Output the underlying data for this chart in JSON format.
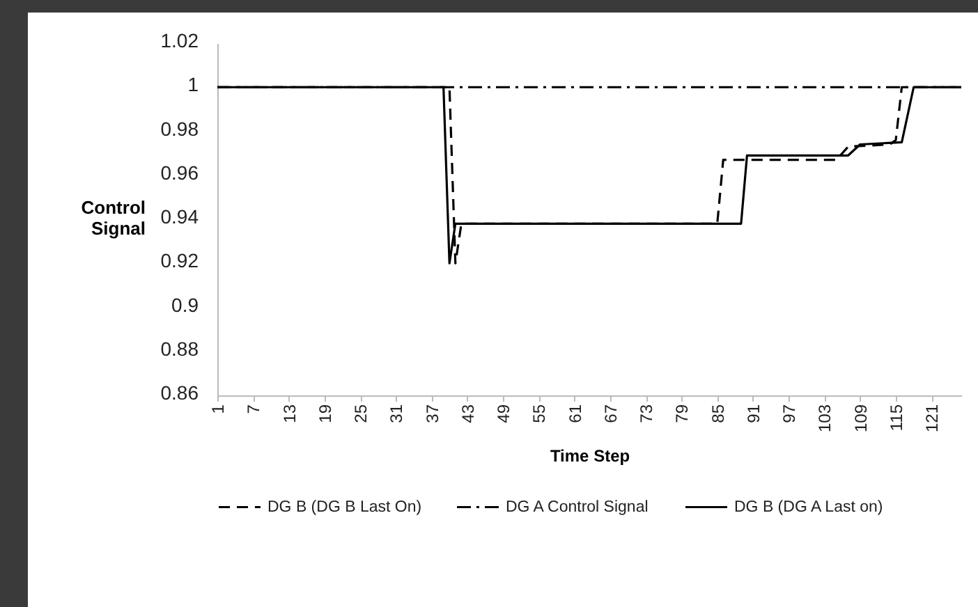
{
  "chart_data": {
    "type": "line",
    "xlabel": "Time Step",
    "ylabel": "Control Signal",
    "xlim": [
      1,
      126
    ],
    "xticks": [
      1,
      7,
      13,
      19,
      25,
      31,
      37,
      43,
      49,
      55,
      61,
      67,
      73,
      79,
      85,
      91,
      97,
      103,
      109,
      115,
      121
    ],
    "ylim": [
      0.86,
      1.02
    ],
    "yticks": [
      0.86,
      0.88,
      0.9,
      0.92,
      0.94,
      0.96,
      0.98,
      1,
      1.02
    ],
    "grid": false,
    "legend": "bottom",
    "marker": "none",
    "series": [
      {
        "name": "DG B (DG B Last On)",
        "color": "#000000",
        "line_style": "dashed",
        "x": [
          1,
          40,
          41,
          42,
          85,
          86,
          105,
          107,
          114,
          115,
          116,
          126
        ],
        "values": [
          1,
          1,
          0.92,
          0.938,
          0.938,
          0.967,
          0.967,
          0.973,
          0.974,
          0.976,
          1,
          1
        ]
      },
      {
        "name": "DG A Control Signal",
        "color": "#000000",
        "line_style": "dashdot",
        "x": [
          1,
          126
        ],
        "values": [
          1,
          1
        ]
      },
      {
        "name": "DG B (DG A Last on)",
        "color": "#000000",
        "line_style": "solid",
        "x": [
          1,
          39,
          40,
          41,
          89,
          90,
          107,
          109,
          116,
          118,
          126
        ],
        "values": [
          1,
          1,
          0.92,
          0.938,
          0.938,
          0.969,
          0.969,
          0.974,
          0.975,
          1,
          1
        ]
      }
    ]
  }
}
